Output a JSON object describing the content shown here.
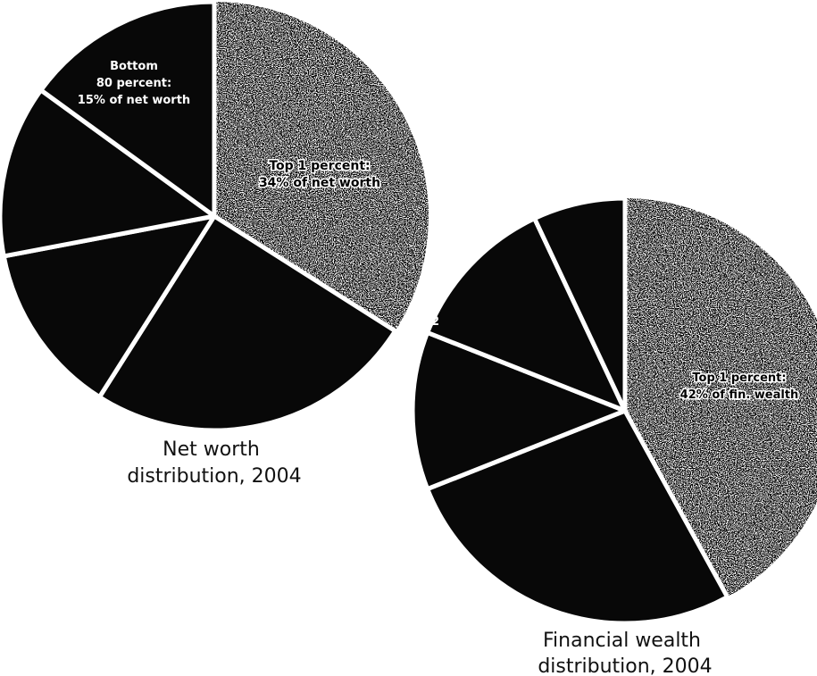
{
  "colors": {
    "dark_slice": "#080808",
    "light_slice": "#f4f4f4",
    "separator": "#ffffff",
    "label_on_dark": "#ffffff",
    "label_on_light": "#000000"
  },
  "chart_data": [
    {
      "type": "pie",
      "title": "Net worth distribution, 2004",
      "title_lines": [
        "Net worth",
        "distribution, 2004"
      ],
      "slices": [
        {
          "name": "Top 1 percent",
          "value": 34,
          "label_lines": [
            "Top 1 percent:",
            "34% of net worth"
          ],
          "style": "light"
        },
        {
          "name": "",
          "value": 25,
          "label_lines": [],
          "style": "dark"
        },
        {
          "name": "",
          "value": 13,
          "label_lines": [],
          "style": "dark"
        },
        {
          "name": "",
          "value": 13,
          "label_lines": [],
          "style": "dark"
        },
        {
          "name": "Bottom 80 percent",
          "value": 15,
          "label_lines": [
            "Bottom",
            "80 percent:",
            "15% of net worth"
          ],
          "style": "dark"
        }
      ]
    },
    {
      "type": "pie",
      "title": "Financial wealth distribution, 2004",
      "title_lines": [
        "Financial wealth",
        "distribution, 2004"
      ],
      "slices": [
        {
          "name": "Top 1 percent",
          "value": 42,
          "label_lines": [
            "Top 1 percent:",
            "42% of fin. wealth"
          ],
          "style": "light"
        },
        {
          "name": "",
          "value": 27,
          "label_lines": [],
          "style": "dark"
        },
        {
          "name": "",
          "value": 12,
          "label_lines": [
            "Ne",
            "12"
          ],
          "style": "dark"
        },
        {
          "name": "",
          "value": 12,
          "label_lines": [],
          "style": "dark"
        },
        {
          "name": "Bottom 80 percent",
          "value": 7,
          "label_lines": [
            "Bottom 80 percent:",
            "7% of fin. wealth"
          ],
          "style": "dark"
        }
      ]
    }
  ]
}
